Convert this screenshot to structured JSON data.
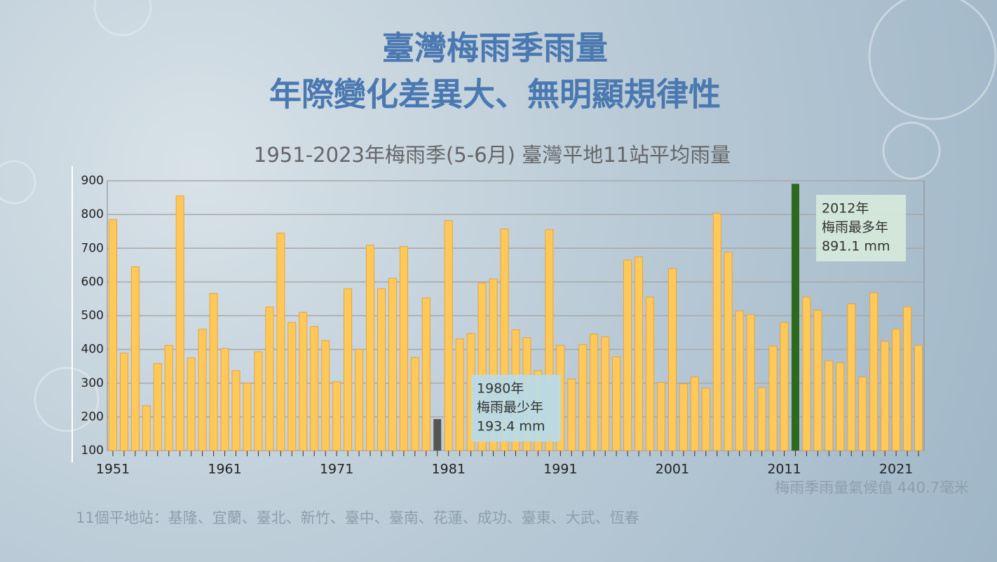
{
  "chart_data": {
    "type": "bar",
    "title": "臺灣梅雨季雨量",
    "subtitle": "年際變化差異大、無明顯規律性",
    "chart_title": "1951-2023年梅雨季(5-6月) 臺灣平地11站平均雨量",
    "categories": [
      "1951",
      null,
      null,
      null,
      null,
      null,
      null,
      null,
      null,
      null,
      "1961",
      null,
      null,
      null,
      null,
      null,
      null,
      null,
      null,
      null,
      "1971",
      null,
      null,
      null,
      null,
      null,
      null,
      null,
      null,
      null,
      "1981",
      null,
      null,
      null,
      null,
      null,
      null,
      null,
      null,
      null,
      "1991",
      null,
      null,
      null,
      null,
      null,
      null,
      null,
      null,
      null,
      "2001",
      null,
      null,
      null,
      null,
      null,
      null,
      null,
      null,
      null,
      "2011",
      null,
      null,
      null,
      null,
      null,
      null,
      null,
      null,
      null,
      "2021",
      null,
      null
    ],
    "values": [
      785,
      389,
      645,
      233,
      358,
      412,
      855,
      375,
      460,
      566,
      403,
      337,
      300,
      393,
      526,
      745,
      480,
      510,
      468,
      426,
      304,
      580,
      400,
      709,
      580,
      611,
      705,
      376,
      553,
      193.4,
      782,
      431,
      447,
      597,
      609,
      757,
      458,
      435,
      337,
      755,
      412,
      312,
      414,
      445,
      437,
      378,
      665,
      674,
      555,
      302,
      640,
      298,
      318,
      285,
      803,
      688,
      514,
      503,
      287,
      410,
      480,
      891.1,
      555,
      516,
      366,
      360,
      535,
      318,
      568,
      424,
      460,
      526,
      412
    ],
    "color": "#ffc95a",
    "colors": [
      "#ffc95a",
      "#ffc95a",
      "#ffc95a",
      "#ffc95a",
      "#ffc95a",
      "#ffc95a",
      "#ffc95a",
      "#ffc95a",
      "#ffc95a",
      "#ffc95a",
      "#ffc95a",
      "#ffc95a",
      "#ffc95a",
      "#ffc95a",
      "#ffc95a",
      "#ffc95a",
      "#ffc95a",
      "#ffc95a",
      "#ffc95a",
      "#ffc95a",
      "#ffc95a",
      "#ffc95a",
      "#ffc95a",
      "#ffc95a",
      "#ffc95a",
      "#ffc95a",
      "#ffc95a",
      "#ffc95a",
      "#ffc95a",
      "#555555",
      "#ffc95a",
      "#ffc95a",
      "#ffc95a",
      "#ffc95a",
      "#ffc95a",
      "#ffc95a",
      "#ffc95a",
      "#ffc95a",
      "#ffc95a",
      "#ffc95a",
      "#ffc95a",
      "#ffc95a",
      "#ffc95a",
      "#ffc95a",
      "#ffc95a",
      "#ffc95a",
      "#ffc95a",
      "#ffc95a",
      "#ffc95a",
      "#ffc95a",
      "#ffc95a",
      "#ffc95a",
      "#ffc95a",
      "#ffc95a",
      "#ffc95a",
      "#ffc95a",
      "#ffc95a",
      "#ffc95a",
      "#ffc95a",
      "#ffc95a",
      "#ffc95a",
      "#2d6a1f",
      "#ffc95a",
      "#ffc95a",
      "#ffc95a",
      "#ffc95a",
      "#ffc95a",
      "#ffc95a",
      "#ffc95a",
      "#ffc95a",
      "#ffc95a",
      "#ffc95a",
      "#ffc95a"
    ],
    "ylim": [
      100,
      900
    ],
    "yticks": [
      100,
      200,
      300,
      400,
      500,
      600,
      700,
      800,
      900
    ],
    "grid": true,
    "annotations": [
      {
        "lines": [
          "2012年",
          "梅雨最多年",
          "891.1 mm"
        ],
        "color": "#d6eadb"
      },
      {
        "lines": [
          "1980年",
          "梅雨最少年",
          "193.4 mm"
        ],
        "color": "#b8dcea"
      }
    ],
    "climate_note": "梅雨季雨量氣候值 440.7毫米",
    "stations_note": "11個平地站：基隆、宜蘭、臺北、新竹、臺中、臺南、花蓮、成功、臺東、大武、恆春"
  }
}
